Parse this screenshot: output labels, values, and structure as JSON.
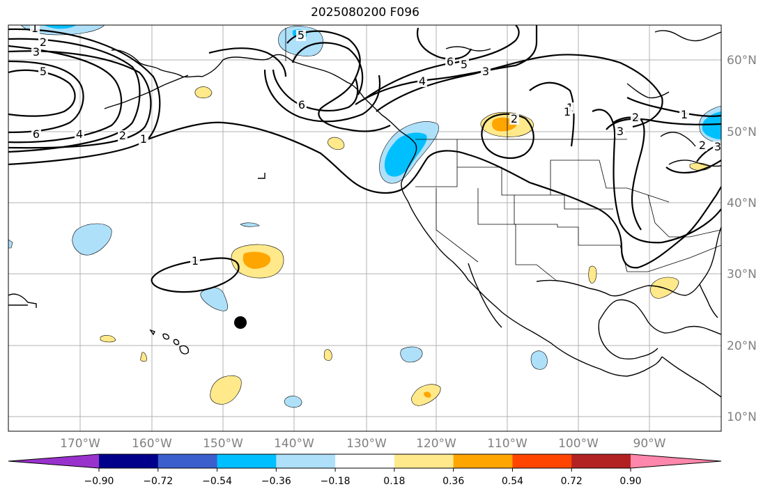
{
  "title": "2025080200 F096",
  "map": {
    "lat_labels": [
      "60°N",
      "50°N",
      "40°N",
      "30°N",
      "20°N",
      "10°N"
    ],
    "lon_labels": [
      "170°W",
      "160°W",
      "150°W",
      "140°W",
      "130°W",
      "120°W",
      "110°W",
      "100°W",
      "90°W"
    ],
    "grid": true,
    "contour_levels": [
      "1",
      "2",
      "3",
      "4",
      "5",
      "6"
    ]
  },
  "contour_labels": [
    "1",
    "2",
    "3",
    "5",
    "6",
    "4",
    "2",
    "1",
    "5",
    "6",
    "6",
    "5",
    "4",
    "3",
    "2",
    "2",
    "1",
    "1",
    "3",
    "2",
    "1",
    "3",
    "1"
  ],
  "colorbar": {
    "tick_labels": [
      "−0.90",
      "−0.72",
      "−0.54",
      "−0.36",
      "−0.18",
      "0.18",
      "0.36",
      "0.54",
      "0.72",
      "0.90"
    ],
    "colors": [
      "#9932cc",
      "#00008b",
      "#3b5fcc",
      "#00bfff",
      "#aee0fa",
      "#ffffff",
      "#ffe98a",
      "#ffa500",
      "#ff4500",
      "#b22222",
      "#ff87ab"
    ]
  },
  "marker": {
    "label": "black-dot"
  }
}
